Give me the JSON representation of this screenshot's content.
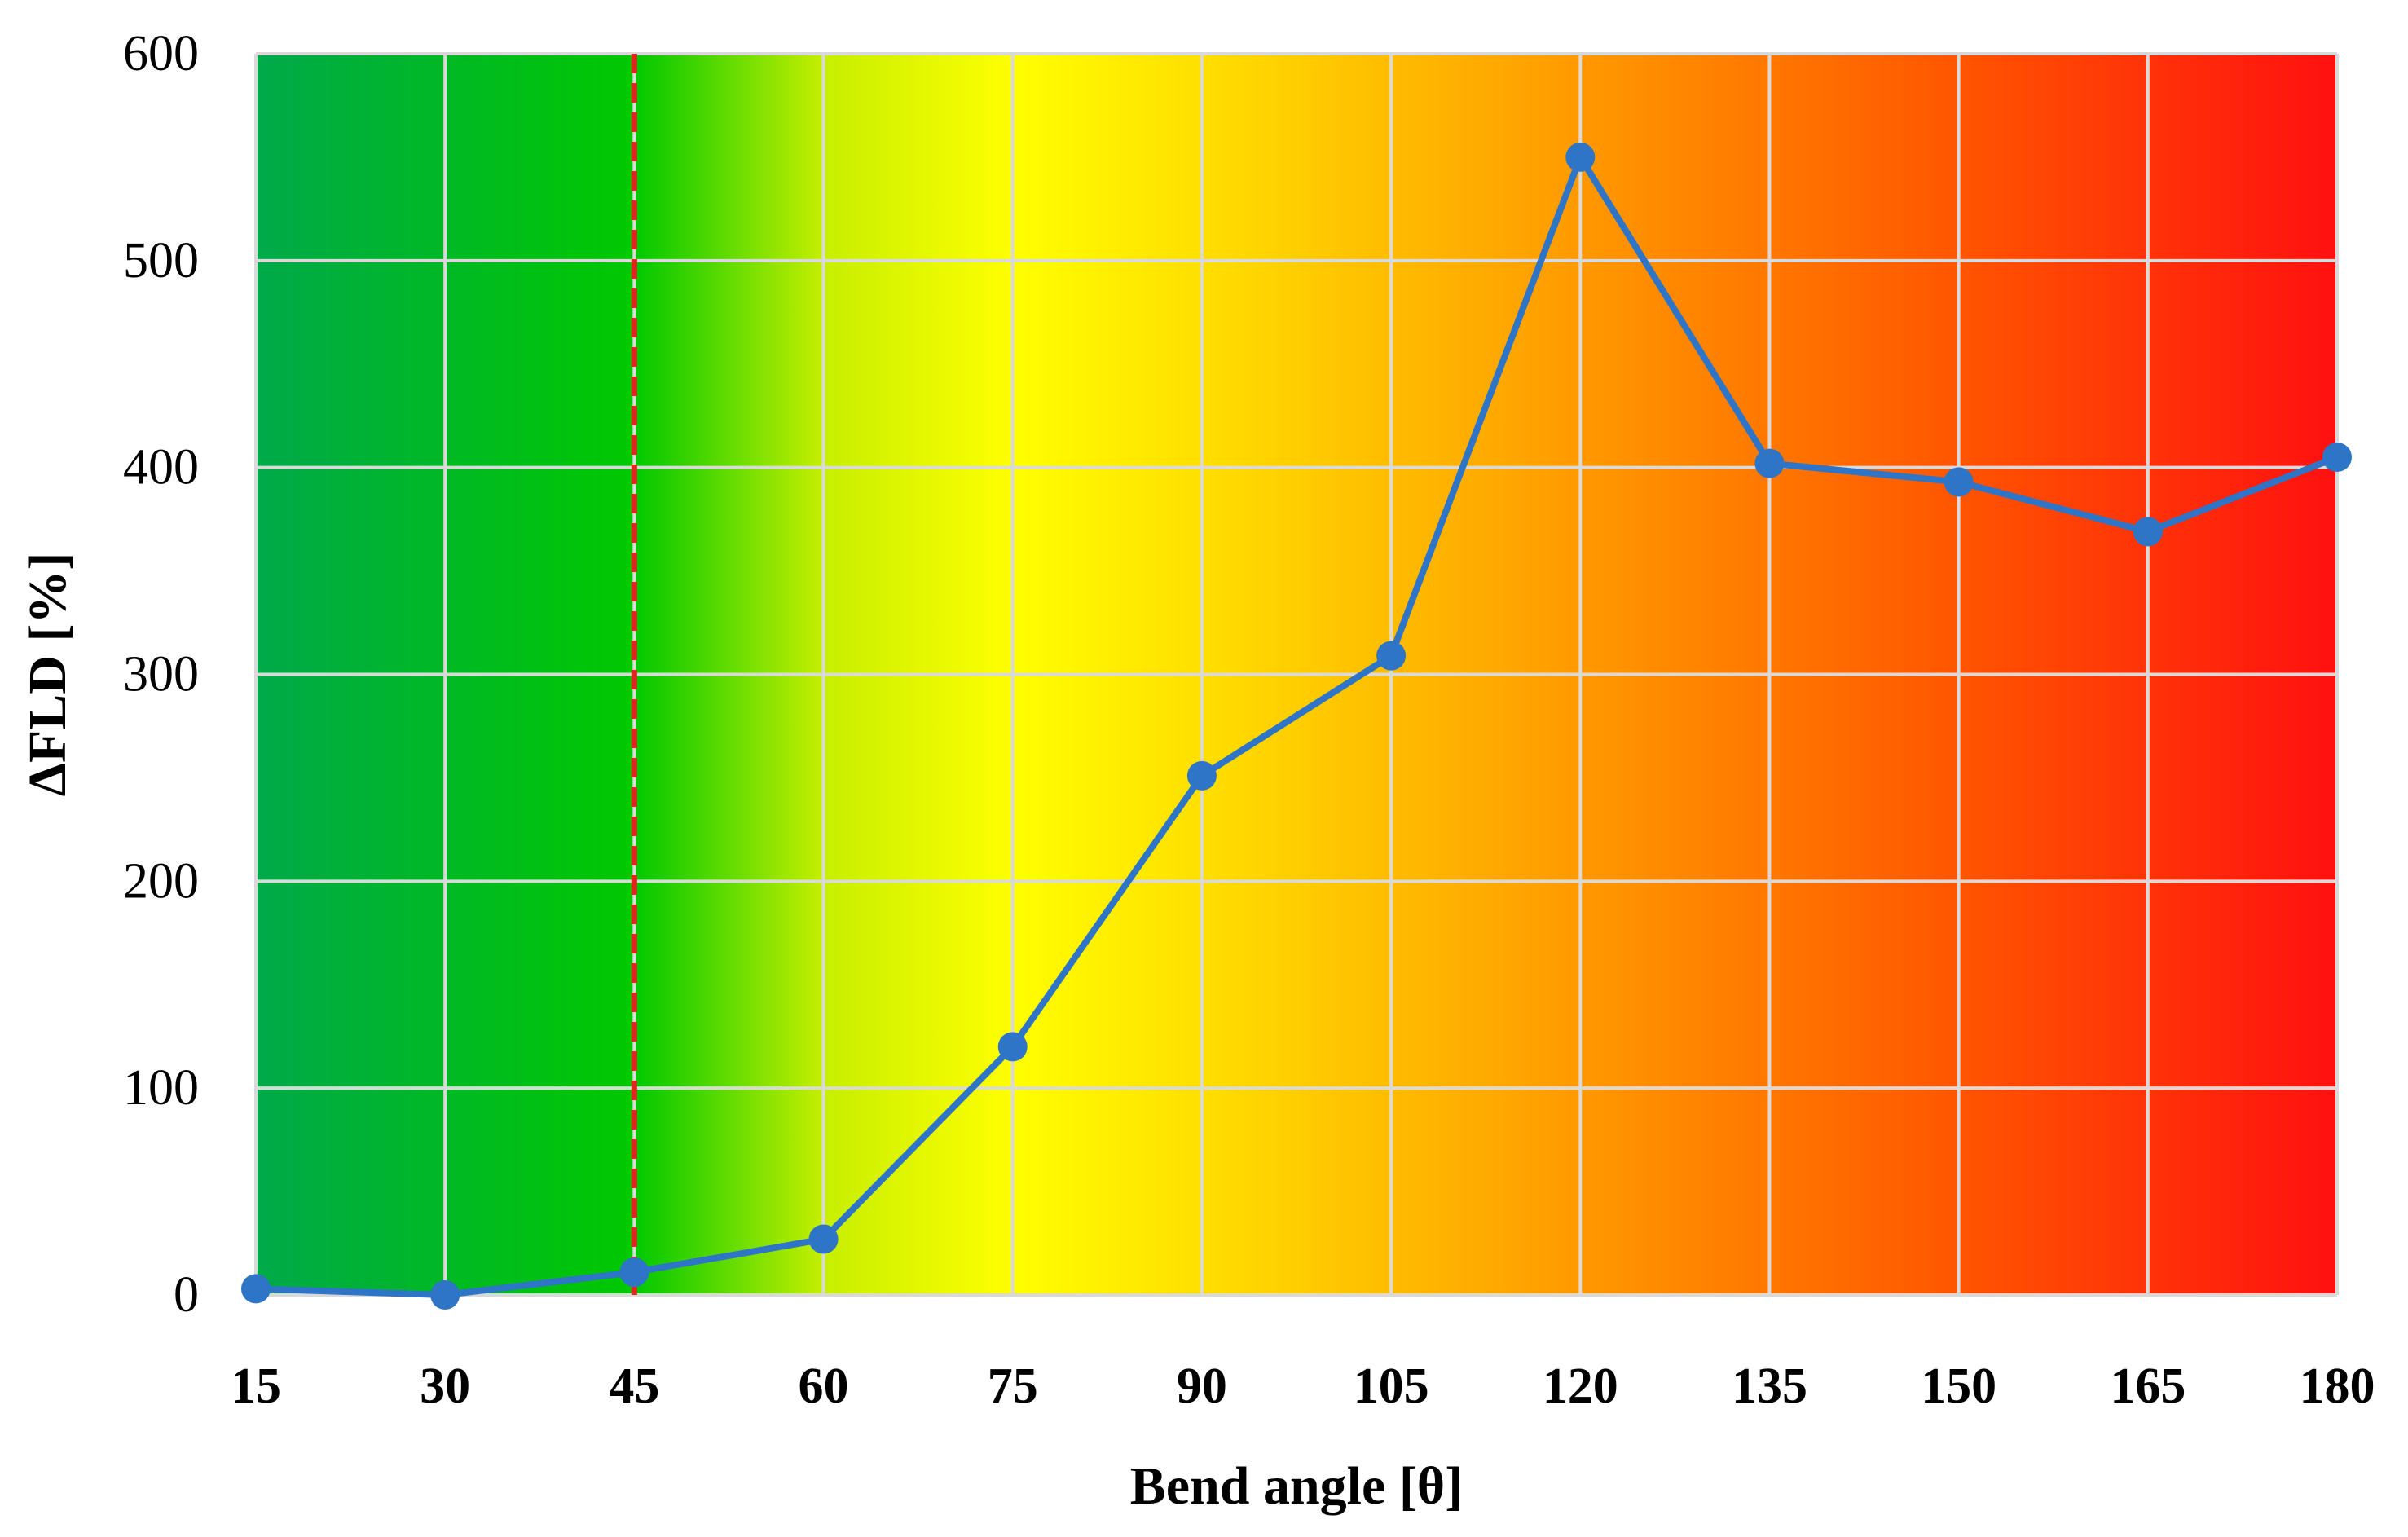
{
  "chart_data": {
    "type": "line",
    "title": "",
    "xlabel": "Bend angle [θ]",
    "ylabel": "ΔFLD [%]",
    "categories": [
      "15",
      "30",
      "45",
      "60",
      "75",
      "90",
      "105",
      "120",
      "135",
      "150",
      "165",
      "180"
    ],
    "x": [
      15,
      30,
      45,
      60,
      75,
      90,
      105,
      120,
      135,
      150,
      165,
      180
    ],
    "xlim": [
      15,
      180
    ],
    "ylim": [
      0,
      600
    ],
    "yticks": [
      "0",
      "100",
      "200",
      "300",
      "400",
      "500",
      "600"
    ],
    "ytick_values": [
      0,
      100,
      200,
      300,
      400,
      500,
      600
    ],
    "grid": true,
    "legend": "none",
    "series": [
      {
        "name": "ΔFLD",
        "values": [
          3,
          0,
          11,
          27,
          120,
          251,
          309,
          550,
          402,
          393,
          369,
          405
        ],
        "color": "#2e75c7"
      }
    ],
    "annotations": [
      {
        "type": "vertical-dashed-line",
        "x": 45,
        "color": "#e0261c"
      }
    ],
    "background_gradient": {
      "stops": [
        {
          "x": 15,
          "color": "#00a94a"
        },
        {
          "x": 45,
          "color": "#00c800"
        },
        {
          "x": 60,
          "color": "#c6ef00"
        },
        {
          "x": 75,
          "color": "#ffff00"
        },
        {
          "x": 90,
          "color": "#ffdf00"
        },
        {
          "x": 120,
          "color": "#ff9900"
        },
        {
          "x": 150,
          "color": "#ff5500"
        },
        {
          "x": 180,
          "color": "#ff1010"
        }
      ]
    }
  }
}
